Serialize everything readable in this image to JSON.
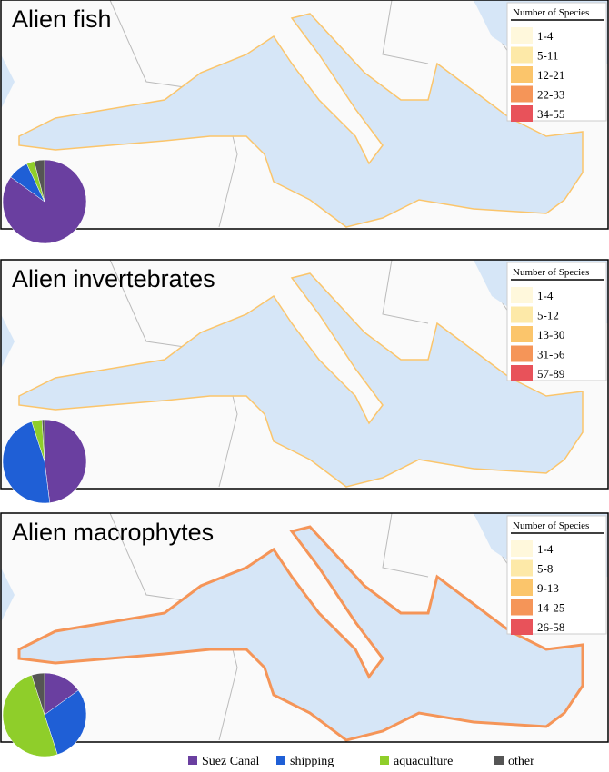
{
  "panels": [
    {
      "title": "Alien fish",
      "legend_title": "Number of Species",
      "classes": [
        "1-4",
        "5-11",
        "12-21",
        "22-33",
        "34-55"
      ],
      "pie": [
        85,
        8,
        3,
        4
      ]
    },
    {
      "title": "Alien invertebrates",
      "legend_title": "Number of Species",
      "classes": [
        "1-4",
        "5-12",
        "13-30",
        "31-56",
        "57-89"
      ],
      "pie": [
        48,
        47,
        4,
        1
      ]
    },
    {
      "title": "Alien macrophytes",
      "legend_title": "Number of Species",
      "classes": [
        "1-4",
        "5-8",
        "9-13",
        "14-25",
        "26-58"
      ],
      "pie": [
        15,
        30,
        50,
        5
      ]
    }
  ],
  "class_colors": [
    "#fff8dc",
    "#fde9a8",
    "#fbc56b",
    "#f59558",
    "#e8525a"
  ],
  "pie_legend": {
    "categories": [
      "Suez Canal",
      "shipping",
      "aquaculture",
      "other"
    ],
    "colors": [
      "#6a3fa0",
      "#1f5fd6",
      "#8fce2a",
      "#555555"
    ]
  }
}
